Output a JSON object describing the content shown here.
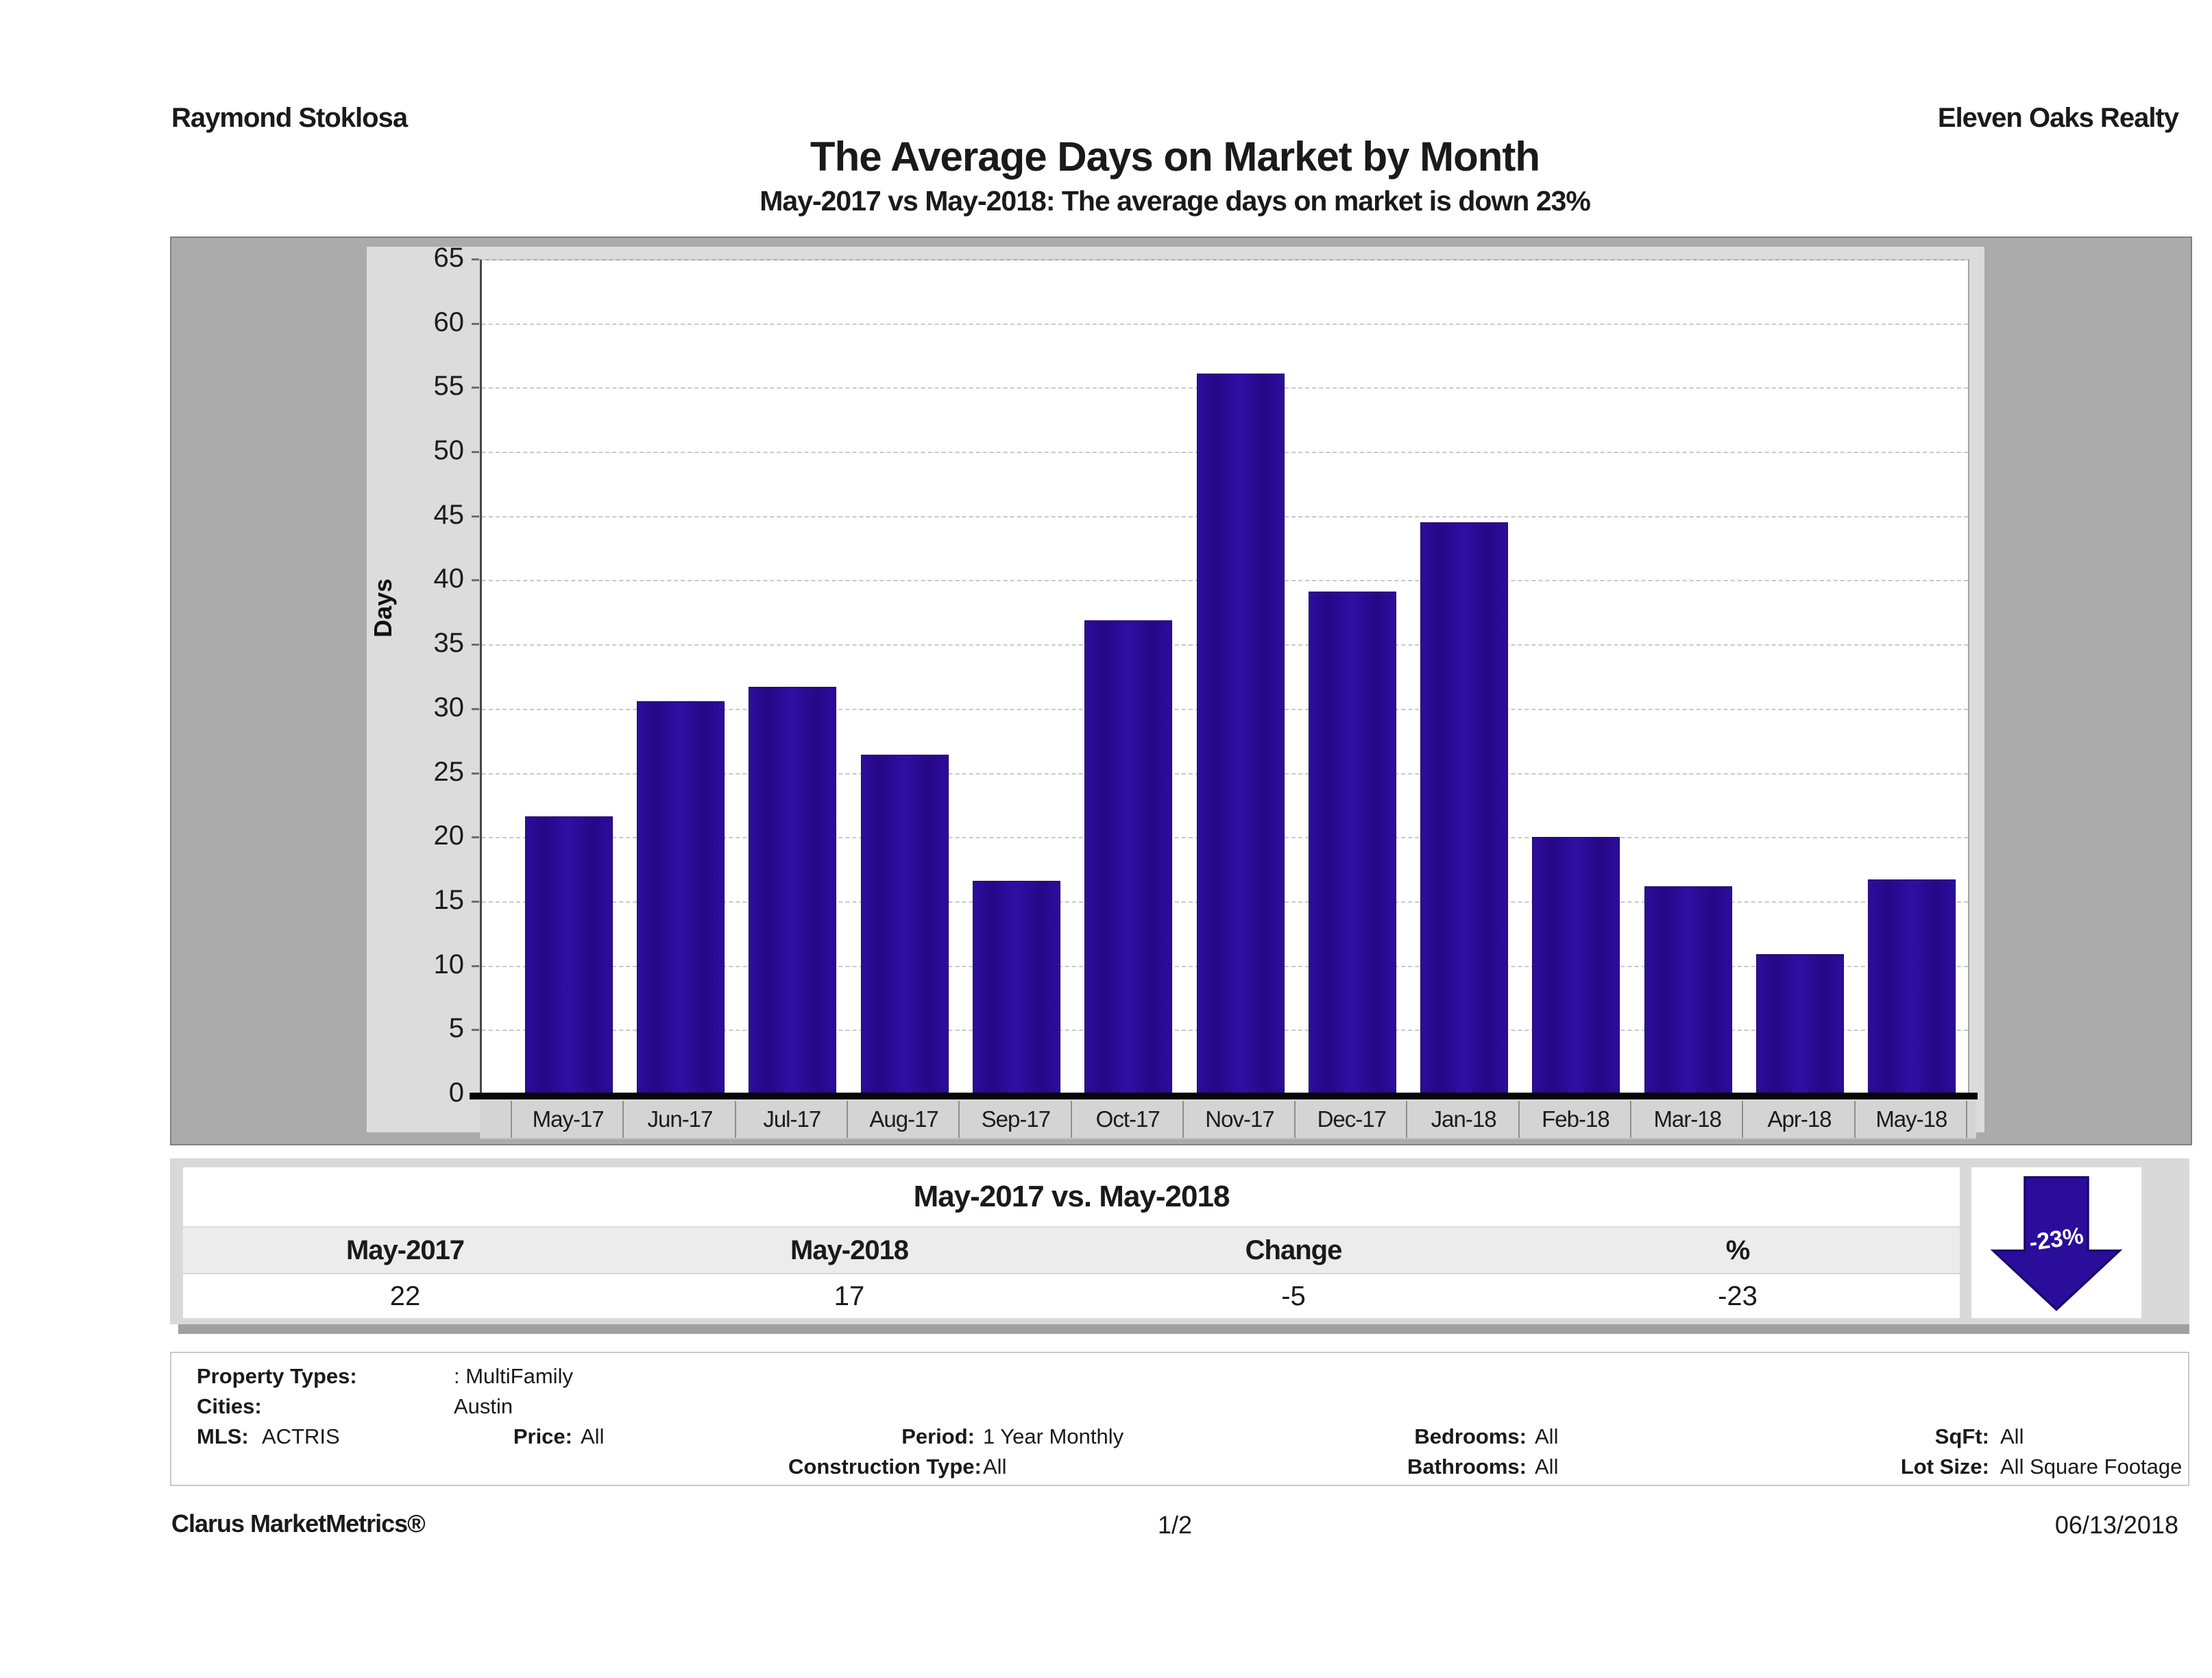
{
  "header": {
    "agent_name": "Raymond Stoklosa",
    "company_name": "Eleven Oaks Realty"
  },
  "title": "The Average Days on Market by Month",
  "subtitle": "May-2017 vs May-2018: The average days on market is down 23%",
  "chart_data": {
    "type": "bar",
    "title": "The Average Days on Market by Month",
    "xlabel": "",
    "ylabel": "Days",
    "ylim": [
      0,
      65
    ],
    "ytick_step": 5,
    "grid": true,
    "legend": "none",
    "bar_color": "#2a0a94",
    "categories": [
      "May-17",
      "Jun-17",
      "Jul-17",
      "Aug-17",
      "Sep-17",
      "Oct-17",
      "Nov-17",
      "Dec-17",
      "Jan-18",
      "Feb-18",
      "Mar-18",
      "Apr-18",
      "May-18"
    ],
    "values": [
      21.7,
      30.7,
      31.8,
      26.5,
      16.7,
      37.0,
      56.2,
      39.2,
      44.6,
      20.1,
      16.3,
      11.0,
      16.8
    ]
  },
  "summary": {
    "heading": "May-2017 vs. May-2018",
    "columns": [
      "May-2017",
      "May-2018",
      "Change",
      "%"
    ],
    "values": [
      "22",
      "17",
      "-5",
      "-23"
    ],
    "arrow_label": "-23%",
    "arrow_color": "#2a0d9b"
  },
  "criteria": {
    "property_types_label": "Property Types:",
    "property_types_value": ": MultiFamily",
    "cities_label": "Cities:",
    "cities_value": "Austin",
    "mls_label": "MLS:",
    "mls_value": "ACTRIS",
    "price_label": "Price:",
    "price_value": "All",
    "period_label": "Period:",
    "period_value": "1 Year Monthly",
    "construction_label": "Construction Type:",
    "construction_value": "All",
    "bedrooms_label": "Bedrooms:",
    "bedrooms_value": "All",
    "bathrooms_label": "Bathrooms:",
    "bathrooms_value": "All",
    "sqft_label": "SqFt:",
    "sqft_value": "All",
    "lot_size_label": "Lot Size:",
    "lot_size_value": "All Square Footage"
  },
  "footer": {
    "brand": "Clarus MarketMetrics®",
    "page": "1/2",
    "date": "06/13/2018"
  }
}
